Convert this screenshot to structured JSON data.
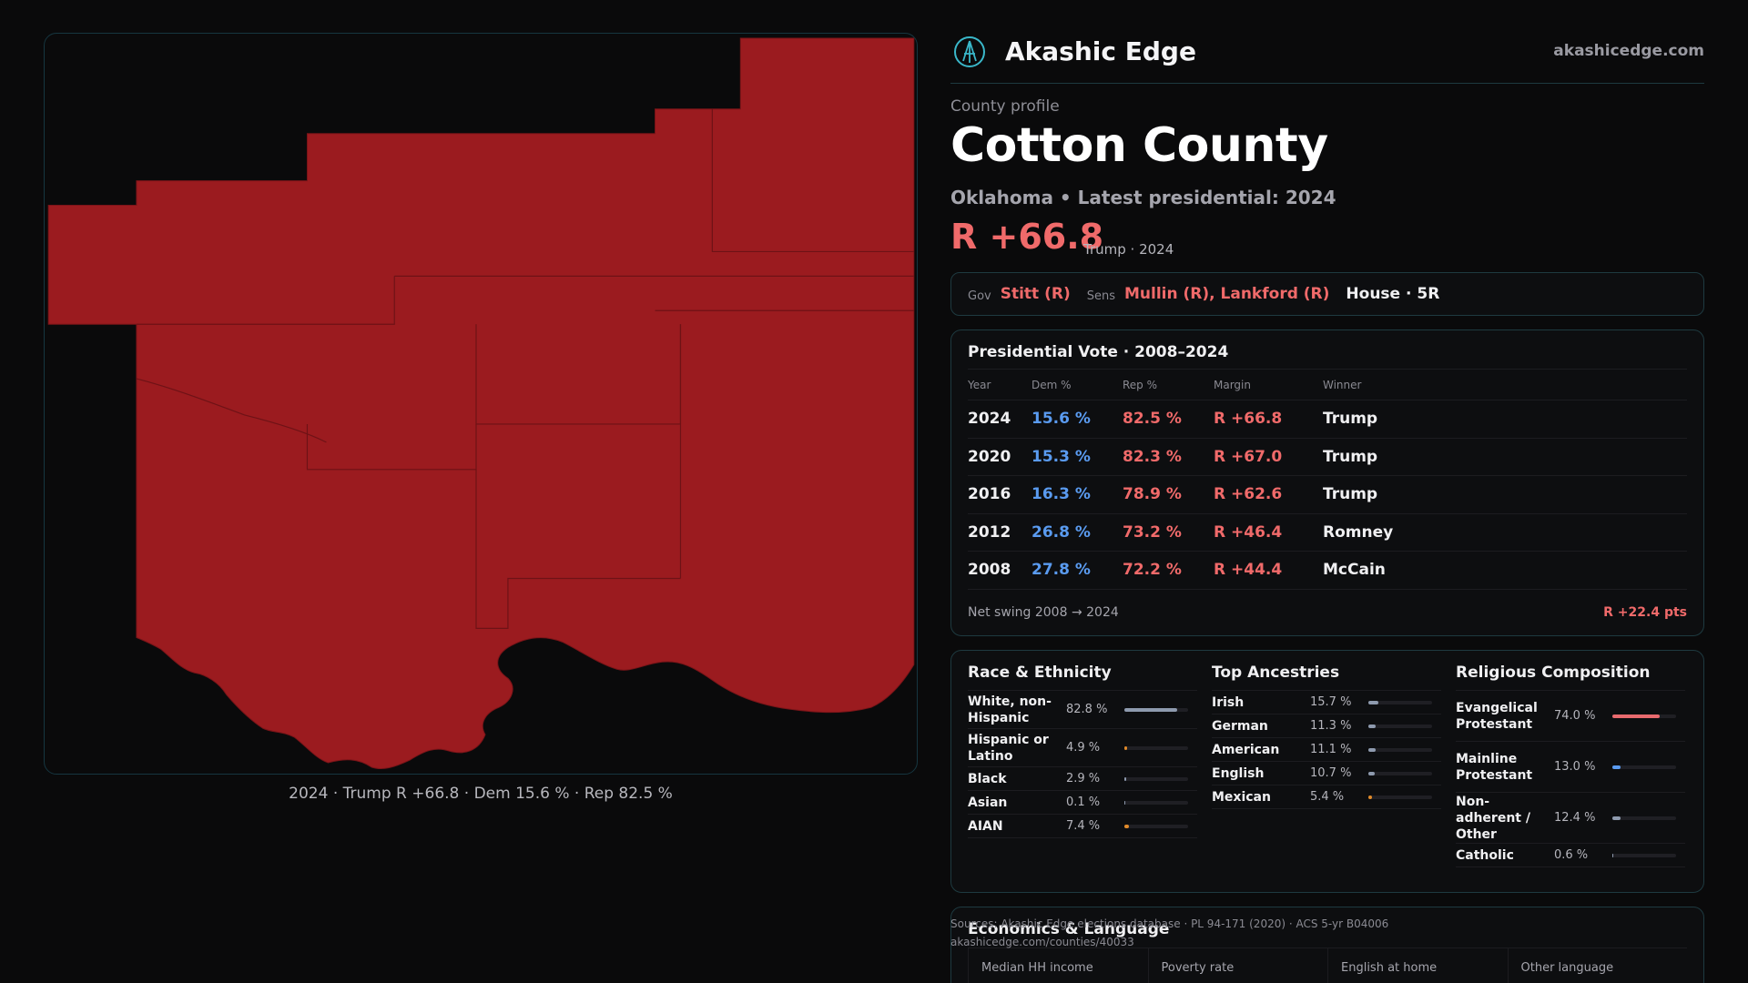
{
  "map": {
    "caption": "2024 · Trump R +66.8 · Dem 15.6 % · Rep 82.5 %",
    "fill_color": "#9b1b1f",
    "border_color": "#163640"
  },
  "brand": {
    "name": "Akashic Edge",
    "url": "akashicedge.com",
    "logo_icon": "compass-logo-icon"
  },
  "profile": {
    "label": "County profile",
    "title": "Cotton County",
    "subtitle": "Oklahoma • Latest presidential: 2024",
    "margin": "R +66.8",
    "margin_note": "Trump · 2024"
  },
  "officials": {
    "gov_label": "Gov",
    "gov_value": "Stitt (R)",
    "sens_label": "Sens",
    "sens_value": "Mullin (R), Lankford (R)",
    "house_value": "House · 5R"
  },
  "presidential": {
    "title": "Presidential Vote · 2008–2024",
    "headers": [
      "Year",
      "Dem %",
      "Rep %",
      "Margin",
      "Winner"
    ],
    "rows": [
      {
        "year": "2024",
        "dem": "15.6 %",
        "rep": "82.5 %",
        "margin": "R +66.8",
        "winner": "Trump"
      },
      {
        "year": "2020",
        "dem": "15.3 %",
        "rep": "82.3 %",
        "margin": "R +67.0",
        "winner": "Trump"
      },
      {
        "year": "2016",
        "dem": "16.3 %",
        "rep": "78.9 %",
        "margin": "R +62.6",
        "winner": "Trump"
      },
      {
        "year": "2012",
        "dem": "26.8 %",
        "rep": "73.2 %",
        "margin": "R +46.4",
        "winner": "Romney"
      },
      {
        "year": "2008",
        "dem": "27.8 %",
        "rep": "72.2 %",
        "margin": "R +44.4",
        "winner": "McCain"
      }
    ],
    "swing_label": "Net swing 2008 → 2024",
    "swing_value": "R +22.4 pts"
  },
  "race": {
    "title": "Race & Ethnicity",
    "rows": [
      {
        "name": "White, non-Hispanic",
        "pct": "82.8 %",
        "fraction": 0.828,
        "color": "#8e9aae"
      },
      {
        "name": "Hispanic or Latino",
        "pct": "4.9 %",
        "fraction": 0.049,
        "color": "#e08a2a"
      },
      {
        "name": "Black",
        "pct": "2.9 %",
        "fraction": 0.029,
        "color": "#8e9aae"
      },
      {
        "name": "Asian",
        "pct": "0.1 %",
        "fraction": 0.001,
        "color": "#8e9aae"
      },
      {
        "name": "AIAN",
        "pct": "7.4 %",
        "fraction": 0.074,
        "color": "#e08a2a"
      }
    ]
  },
  "ancestry": {
    "title": "Top Ancestries",
    "rows": [
      {
        "name": "Irish",
        "pct": "15.7 %",
        "fraction": 0.157,
        "color": "#8e9aae"
      },
      {
        "name": "German",
        "pct": "11.3 %",
        "fraction": 0.113,
        "color": "#8e9aae"
      },
      {
        "name": "American",
        "pct": "11.1 %",
        "fraction": 0.111,
        "color": "#8e9aae"
      },
      {
        "name": "English",
        "pct": "10.7 %",
        "fraction": 0.107,
        "color": "#8e9aae"
      },
      {
        "name": "Mexican",
        "pct": "5.4 %",
        "fraction": 0.054,
        "color": "#e08a2a"
      }
    ]
  },
  "religion": {
    "title": "Religious Composition",
    "rows": [
      {
        "name": "Evangelical Protestant",
        "pct": "74.0 %",
        "fraction": 0.74,
        "color": "#e86a6e"
      },
      {
        "name": "Mainline Protestant",
        "pct": "13.0 %",
        "fraction": 0.13,
        "color": "#5a9bf0"
      },
      {
        "name": "Non-adherent / Other",
        "pct": "12.4 %",
        "fraction": 0.124,
        "color": "#8e9aae"
      },
      {
        "name": "Catholic",
        "pct": "0.6 %",
        "fraction": 0.006,
        "color": "#8e9aae"
      }
    ]
  },
  "economics": {
    "title": "Economics & Language",
    "headers": [
      "Median HH income",
      "Poverty rate",
      "English at home",
      "Other language"
    ]
  },
  "sources": {
    "line1": "Sources: Akashic Edge elections database · PL 94-171 (2020) · ACS 5-yr B04006",
    "line2": "akashicedge.com/counties/40033"
  }
}
